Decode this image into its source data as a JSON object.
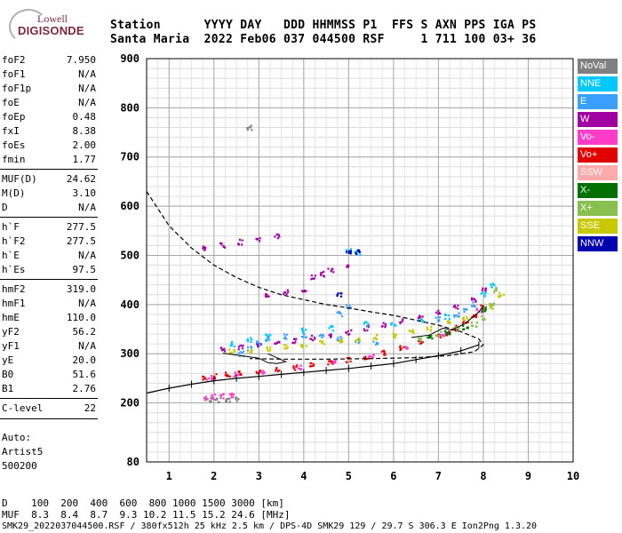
{
  "logo": {
    "line1": "Lowell",
    "line2": "DIGISONDE"
  },
  "header": {
    "row1": "Station      YYYY DAY   DDD HHMMSS P1  FFS S AXN PPS IGA PS",
    "row2": "Santa Maria  2022 Feb06 037 044500 RSF     1 711 100 03+ 36"
  },
  "params": [
    [
      {
        "k": "foF2",
        "v": "7.950"
      },
      {
        "k": "foF1",
        "v": "N/A"
      },
      {
        "k": "foF1p",
        "v": "N/A"
      },
      {
        "k": "foE",
        "v": "N/A"
      },
      {
        "k": "foEp",
        "v": "0.48"
      },
      {
        "k": "fxI",
        "v": "8.38"
      },
      {
        "k": "foEs",
        "v": "2.00"
      },
      {
        "k": "fmin",
        "v": "1.77"
      }
    ],
    [
      {
        "k": "MUF(D)",
        "v": "24.62"
      },
      {
        "k": "M(D)",
        "v": "3.10"
      },
      {
        "k": "D",
        "v": "N/A"
      }
    ],
    [
      {
        "k": "h`F",
        "v": "277.5"
      },
      {
        "k": "h`F2",
        "v": "277.5"
      },
      {
        "k": "h`E",
        "v": "N/A"
      },
      {
        "k": "h`Es",
        "v": "97.5"
      }
    ],
    [
      {
        "k": "hmF2",
        "v": "319.0"
      },
      {
        "k": "hmF1",
        "v": "N/A"
      },
      {
        "k": "hmE",
        "v": "110.0"
      },
      {
        "k": "yF2",
        "v": "56.2"
      },
      {
        "k": "yF1",
        "v": "N/A"
      },
      {
        "k": "yE",
        "v": "20.0"
      },
      {
        "k": "B0",
        "v": "51.6"
      },
      {
        "k": "B1",
        "v": "2.76"
      }
    ],
    [
      {
        "k": "C-level",
        "v": "22"
      }
    ]
  ],
  "auto": {
    "line1": "Auto:",
    "line2": "Artist5",
    "line3": "500200"
  },
  "legend": [
    {
      "label": "NoVal",
      "color": "#808080"
    },
    {
      "label": "NNE",
      "color": "#00c8ff"
    },
    {
      "label": "E",
      "color": "#3aa0ff"
    },
    {
      "label": "W",
      "color": "#a000a0"
    },
    {
      "label": "Vo-",
      "color": "#ff3cc8"
    },
    {
      "label": "Vo+",
      "color": "#e00000"
    },
    {
      "label": "SSW",
      "color": "#ffaaaa"
    },
    {
      "label": "X-",
      "color": "#007000"
    },
    {
      "label": "X+",
      "color": "#88c050"
    },
    {
      "label": "SSE",
      "color": "#c8c800"
    },
    {
      "label": "NNW",
      "color": "#0000b0"
    }
  ],
  "bottom": {
    "row1": "D    100  200  400  600  800 1000 1500 3000 [km]",
    "row2": "MUF  8.3  8.4  8.7  9.3 10.2 11.5 15.2 24.6 [MHz]",
    "row3": "SMK29_2022037044500.RSF / 380fx512h 25 kHz 2.5 km / DPS-4D SMK29 129 / 29.7 S 306.3 E Ion2Png 1.3.20"
  },
  "chart_data": {
    "type": "scatter",
    "xlabel": "",
    "ylabel": "",
    "xlim": [
      0.5,
      10
    ],
    "ylim": [
      80,
      900
    ],
    "x_ticks": [
      1,
      2,
      3,
      4,
      5,
      6,
      7,
      8,
      9,
      10
    ],
    "y_ticks": [
      80,
      200,
      300,
      400,
      500,
      600,
      700,
      800,
      900
    ],
    "grid": true,
    "series": [
      {
        "color": "#e00000",
        "points": [
          [
            1.8,
            250
          ],
          [
            2.0,
            254
          ],
          [
            2.3,
            257
          ],
          [
            2.6,
            260
          ],
          [
            3.0,
            264
          ],
          [
            3.4,
            268
          ],
          [
            3.8,
            272
          ],
          [
            4.2,
            276
          ],
          [
            4.6,
            282
          ],
          [
            5.0,
            288
          ],
          [
            5.4,
            294
          ],
          [
            5.8,
            302
          ],
          [
            6.2,
            312
          ],
          [
            6.6,
            322
          ],
          [
            7.0,
            334
          ],
          [
            7.2,
            342
          ],
          [
            7.4,
            352
          ],
          [
            7.6,
            364
          ],
          [
            7.8,
            378
          ],
          [
            8.0,
            396
          ]
        ]
      },
      {
        "color": "#a000a0",
        "points": [
          [
            2.2,
            310
          ],
          [
            2.6,
            312
          ],
          [
            3.0,
            318
          ],
          [
            3.4,
            322
          ],
          [
            3.8,
            326
          ],
          [
            4.2,
            332
          ],
          [
            4.6,
            338
          ],
          [
            5.0,
            344
          ],
          [
            5.4,
            352
          ],
          [
            5.8,
            358
          ],
          [
            6.2,
            366
          ],
          [
            6.6,
            374
          ],
          [
            7.0,
            384
          ],
          [
            7.4,
            396
          ],
          [
            7.8,
            410
          ],
          [
            8.0,
            430
          ],
          [
            1.8,
            515
          ],
          [
            2.2,
            520
          ],
          [
            2.6,
            527
          ],
          [
            3.0,
            533
          ],
          [
            3.4,
            540
          ],
          [
            4.2,
            455
          ],
          [
            4.4,
            462
          ],
          [
            4.6,
            470
          ],
          [
            5.0,
            480
          ],
          [
            3.2,
            420
          ],
          [
            3.6,
            425
          ],
          [
            4.0,
            425
          ]
        ]
      },
      {
        "color": "#3aa0ff",
        "points": [
          [
            2.6,
            300
          ],
          [
            2.8,
            310
          ],
          [
            3.0,
            322
          ],
          [
            3.2,
            330
          ],
          [
            3.6,
            335
          ],
          [
            4.0,
            338
          ],
          [
            4.4,
            334
          ],
          [
            4.8,
            330
          ],
          [
            5.2,
            326
          ],
          [
            5.6,
            322
          ],
          [
            7.0,
            370
          ],
          [
            7.4,
            380
          ],
          [
            7.6,
            390
          ],
          [
            7.8,
            400
          ],
          [
            4.8,
            380
          ],
          [
            5.0,
            395
          ]
        ]
      },
      {
        "color": "#00c8ff",
        "points": [
          [
            2.4,
            320
          ],
          [
            2.8,
            328
          ],
          [
            3.2,
            335
          ],
          [
            4.0,
            348
          ],
          [
            4.6,
            352
          ],
          [
            5.4,
            360
          ],
          [
            6.0,
            362
          ],
          [
            6.6,
            366
          ],
          [
            7.2,
            376
          ],
          [
            8.0,
            420
          ],
          [
            8.2,
            440
          ],
          [
            5.0,
            510
          ],
          [
            5.2,
            505
          ]
        ]
      },
      {
        "color": "#c8c800",
        "points": [
          [
            2.4,
            305
          ],
          [
            2.8,
            306
          ],
          [
            3.2,
            310
          ],
          [
            3.6,
            315
          ],
          [
            4.0,
            318
          ],
          [
            4.4,
            322
          ],
          [
            4.8,
            326
          ],
          [
            5.2,
            330
          ],
          [
            5.6,
            334
          ],
          [
            6.0,
            338
          ],
          [
            6.4,
            344
          ],
          [
            6.8,
            352
          ],
          [
            7.2,
            362
          ],
          [
            7.6,
            372
          ],
          [
            8.2,
            395
          ],
          [
            8.4,
            420
          ]
        ]
      },
      {
        "color": "#88c050",
        "points": [
          [
            6.6,
            330
          ],
          [
            7.0,
            340
          ],
          [
            7.4,
            350
          ],
          [
            7.8,
            360
          ],
          [
            8.0,
            372
          ],
          [
            8.2,
            400
          ],
          [
            8.3,
            430
          ]
        ]
      },
      {
        "color": "#ff3cc8",
        "points": [
          [
            1.9,
            252
          ],
          [
            2.5,
            258
          ],
          [
            3.1,
            263
          ],
          [
            3.9,
            271
          ],
          [
            4.7,
            283
          ],
          [
            5.5,
            296
          ],
          [
            6.3,
            314
          ],
          [
            7.1,
            338
          ],
          [
            7.9,
            388
          ],
          [
            1.8,
            210
          ],
          [
            2.0,
            212
          ],
          [
            2.2,
            214
          ],
          [
            2.4,
            216
          ]
        ]
      },
      {
        "color": "#007000",
        "points": [
          [
            6.8,
            336
          ],
          [
            7.2,
            344
          ],
          [
            7.6,
            354
          ],
          [
            8.0,
            390
          ]
        ]
      },
      {
        "color": "#0000b0",
        "points": [
          [
            5.0,
            505
          ],
          [
            5.2,
            508
          ],
          [
            4.8,
            420
          ]
        ]
      },
      {
        "color": "#808080",
        "points": [
          [
            1.9,
            205
          ],
          [
            2.1,
            206
          ],
          [
            2.3,
            207
          ],
          [
            2.5,
            208
          ],
          [
            2.8,
            760
          ]
        ]
      }
    ],
    "curves": [
      {
        "style": "dashed",
        "points": [
          [
            0.5,
            630
          ],
          [
            1.0,
            560
          ],
          [
            1.5,
            515
          ],
          [
            2.0,
            480
          ],
          [
            2.5,
            455
          ],
          [
            3.0,
            435
          ],
          [
            3.5,
            420
          ],
          [
            4.0,
            410
          ],
          [
            4.5,
            400
          ],
          [
            5.0,
            393
          ],
          [
            5.5,
            385
          ],
          [
            6.0,
            378
          ],
          [
            6.5,
            368
          ],
          [
            7.0,
            358
          ],
          [
            7.5,
            345
          ],
          [
            7.9,
            330
          ],
          [
            8.0,
            318
          ],
          [
            7.8,
            304
          ],
          [
            7.2,
            296
          ],
          [
            6.5,
            292
          ],
          [
            5.5,
            290
          ],
          [
            4.5,
            289
          ],
          [
            3.5,
            289
          ],
          [
            2.8,
            290
          ]
        ]
      },
      {
        "style": "crossed",
        "points": [
          [
            0.5,
            220
          ],
          [
            1.0,
            230
          ],
          [
            1.5,
            238
          ],
          [
            2.0,
            245
          ],
          [
            2.5,
            250
          ],
          [
            3.0,
            254
          ],
          [
            3.5,
            258
          ],
          [
            4.0,
            262
          ],
          [
            4.5,
            266
          ],
          [
            5.0,
            270
          ],
          [
            5.5,
            275
          ],
          [
            6.0,
            280
          ],
          [
            6.5,
            288
          ],
          [
            7.0,
            296
          ],
          [
            7.5,
            306
          ],
          [
            7.9,
            318
          ]
        ]
      },
      {
        "style": "solid",
        "points": [
          [
            2.2,
            301
          ],
          [
            2.6,
            296
          ],
          [
            3.0,
            291
          ],
          [
            3.2,
            282
          ],
          [
            3.4,
            280
          ],
          [
            3.6,
            284
          ],
          [
            3.2,
            300
          ]
        ]
      },
      {
        "style": "solid",
        "points": [
          [
            6.4,
            333
          ],
          [
            6.8,
            338
          ],
          [
            7.1,
            352
          ],
          [
            7.3,
            348
          ],
          [
            7.6,
            362
          ],
          [
            7.9,
            385
          ],
          [
            8.0,
            398
          ]
        ]
      }
    ]
  }
}
